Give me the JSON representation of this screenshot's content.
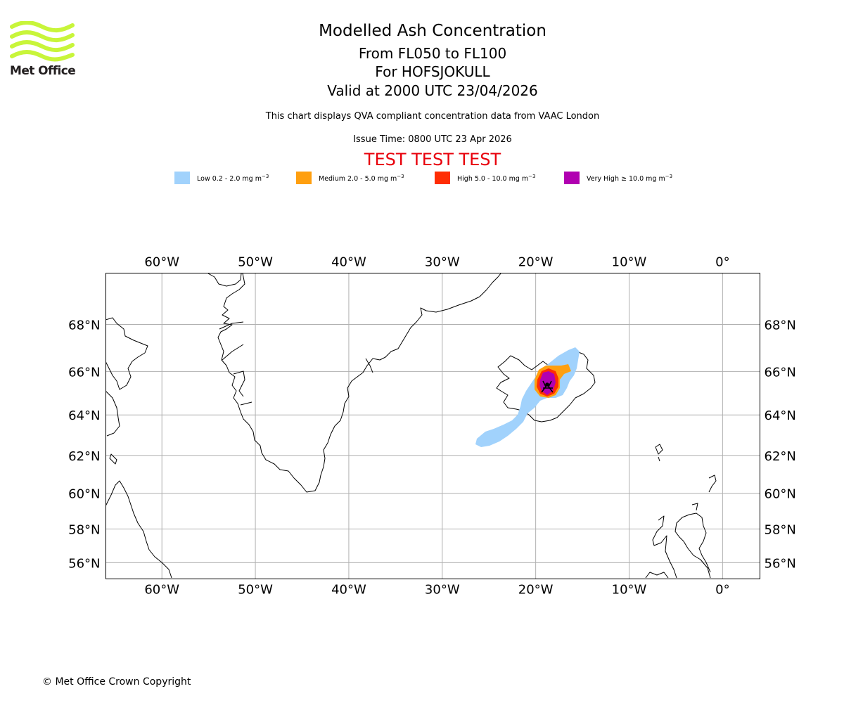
{
  "brand": {
    "name": "Met Office"
  },
  "header": {
    "title": "Modelled Ash Concentration",
    "level_range": "From FL050 to FL100",
    "volcano": "For HOFSJOKULL",
    "valid_time": "Valid at 2000 UTC 23/04/2026",
    "compliance_note": "This chart displays QVA compliant concentration data from VAAC London",
    "issue_time": "Issue Time: 0800 UTC 23 Apr 2026",
    "test_banner": "TEST TEST TEST"
  },
  "legend": [
    {
      "label": "Low 0.2 - 2.0 mg m",
      "unit_exp": "−3",
      "color": "#a1d2fc"
    },
    {
      "label": "Medium 2.0 - 5.0 mg m",
      "unit_exp": "−3",
      "color": "#ff9f0f"
    },
    {
      "label": "High 5.0 - 10.0 mg m",
      "unit_exp": "−3",
      "color": "#ff2d04"
    },
    {
      "label": "Very High  ≥  10.0 mg m",
      "unit_exp": "−3",
      "color": "#b100b1"
    }
  ],
  "map": {
    "lon_ticks": [
      {
        "lon": -60,
        "label": "60°W"
      },
      {
        "lon": -50,
        "label": "50°W"
      },
      {
        "lon": -40,
        "label": "40°W"
      },
      {
        "lon": -30,
        "label": "30°W"
      },
      {
        "lon": -20,
        "label": "20°W"
      },
      {
        "lon": -10,
        "label": "10°W"
      },
      {
        "lon": 0,
        "label": "0°"
      }
    ],
    "lat_ticks": [
      {
        "lat": 68,
        "label": "68°N"
      },
      {
        "lat": 66,
        "label": "66°N"
      },
      {
        "lat": 64,
        "label": "64°N"
      },
      {
        "lat": 62,
        "label": "62°N"
      },
      {
        "lat": 60,
        "label": "60°N"
      },
      {
        "lat": 58,
        "label": "58°N"
      },
      {
        "lat": 56,
        "label": "56°N"
      }
    ],
    "extent": {
      "lon_min": -66,
      "lon_max": 4,
      "lat_min": 55,
      "lat_max": 70
    }
  },
  "footer": {
    "copyright": "© Met Office Crown Copyright"
  }
}
